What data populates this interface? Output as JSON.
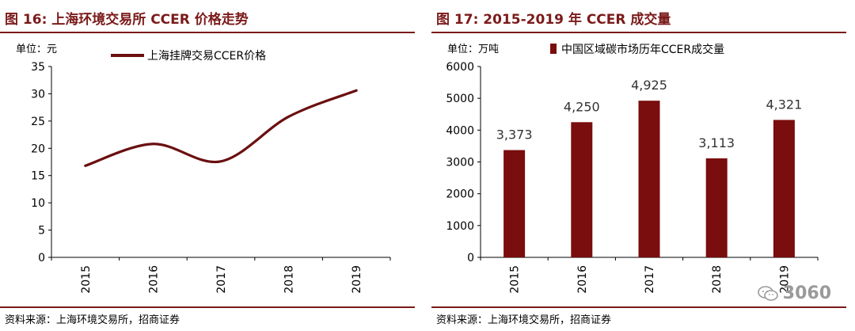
{
  "watermark": {
    "text": "3060",
    "icon": "wechat-icon"
  },
  "charts": [
    {
      "figure_title": "图 16:  上海环境交易所 CCER 价格走势",
      "unit": "单位：元",
      "source": "资料来源：上海环境交易所，招商证券",
      "colors": {
        "accent": "#7b1a1a",
        "series": "#6b0f10"
      }
    },
    {
      "figure_title": "图 17:  2015-2019 年 CCER 成交量",
      "unit": "单位：万吨",
      "source": "资料来源：上海环境交易所，招商证券",
      "colors": {
        "accent": "#7b1a1a",
        "series": "#7a0d0d"
      }
    }
  ],
  "chart_data": [
    {
      "type": "line",
      "title": "上海环境交易所 CCER 价格走势",
      "categories": [
        "2015",
        "2016",
        "2017",
        "2018",
        "2019"
      ],
      "series": [
        {
          "name": "上海挂牌交易CCER价格",
          "values": [
            16.8,
            20.8,
            17.6,
            25.8,
            30.6
          ]
        }
      ],
      "ylim": [
        0,
        35
      ],
      "yticks": [
        "0",
        "5",
        "10",
        "15",
        "20",
        "25",
        "30",
        "35"
      ],
      "xlabel": "",
      "ylabel": "单位：元",
      "legend": "top"
    },
    {
      "type": "bar",
      "title": "2015-2019 年 CCER 成交量",
      "categories": [
        "2015",
        "2016",
        "2017",
        "2018",
        "2019"
      ],
      "series": [
        {
          "name": "中国区域碳市场历年CCER成交量",
          "values": [
            3373,
            4250,
            4925,
            3113,
            4321
          ]
        }
      ],
      "data_labels": [
        "3,373",
        "4,250",
        "4,925",
        "3,113",
        "4,321"
      ],
      "ylim": [
        0,
        6000
      ],
      "yticks": [
        "0",
        "1000",
        "2000",
        "3000",
        "4000",
        "5000",
        "6000"
      ],
      "xlabel": "",
      "ylabel": "单位：万吨",
      "legend": "top"
    }
  ]
}
